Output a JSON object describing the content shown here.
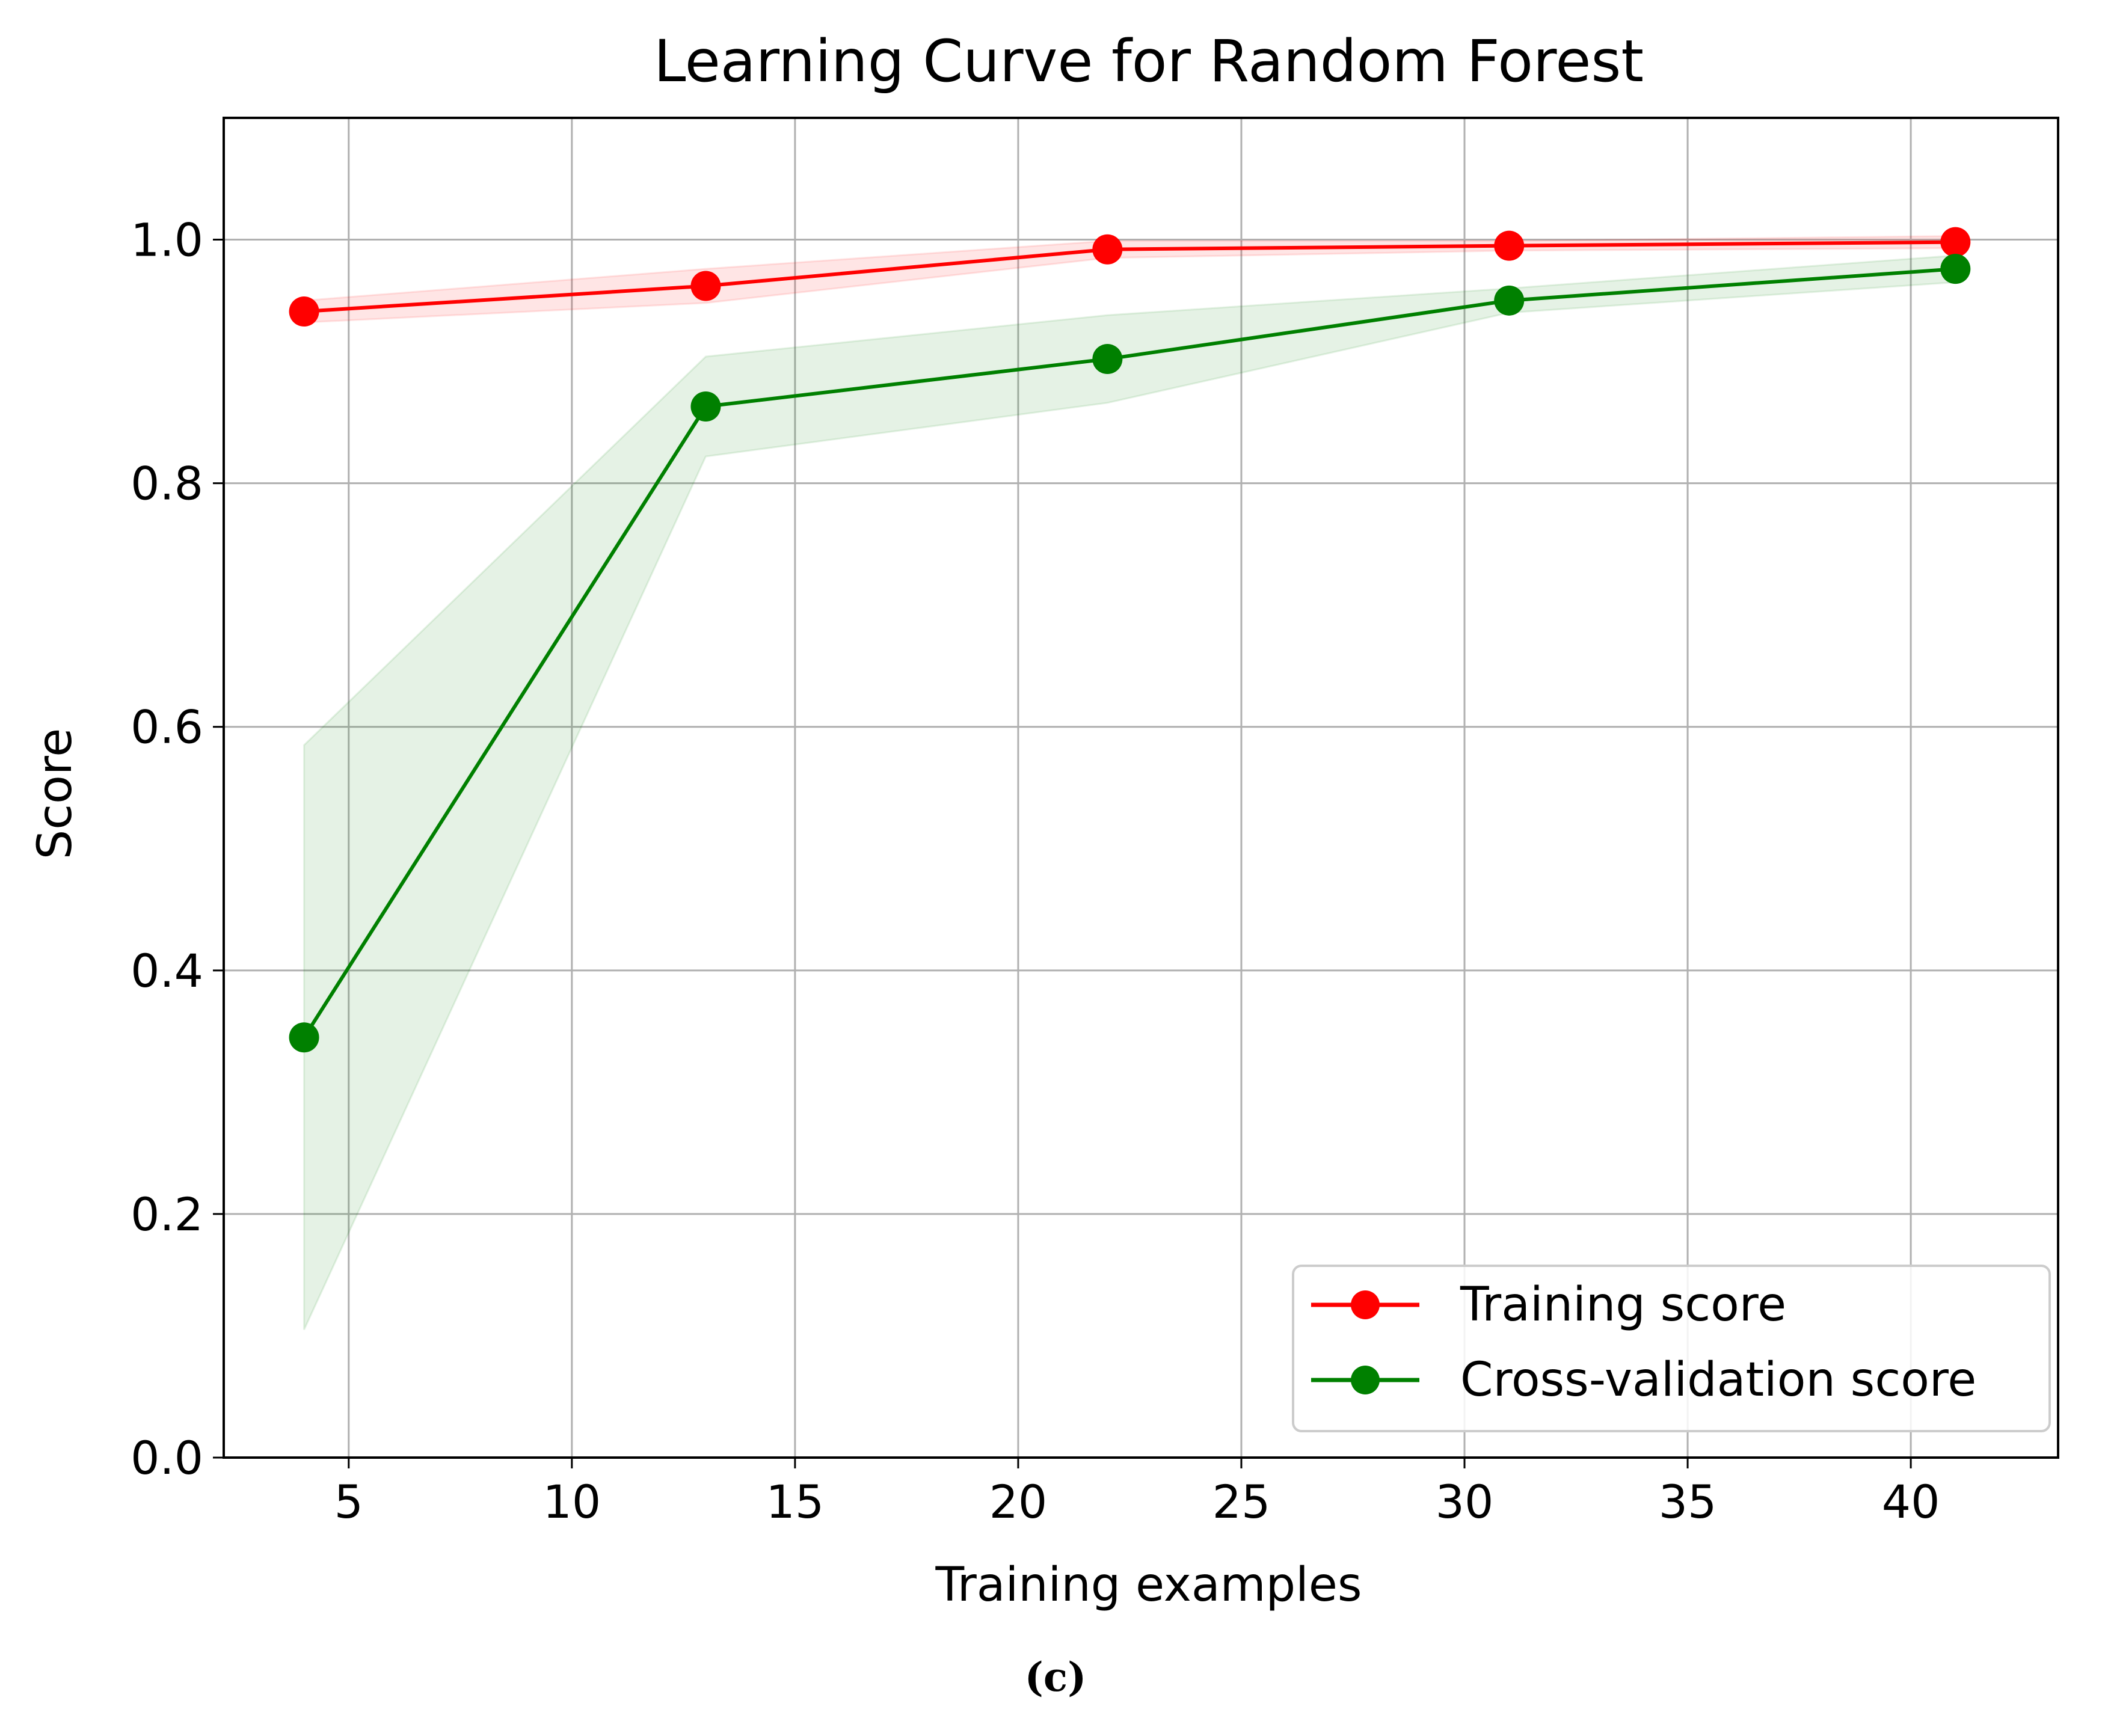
{
  "caption": "(c)",
  "chart_data": {
    "type": "line",
    "title": "Learning Curve for Random Forest",
    "xlabel": "Training examples",
    "ylabel": "Score",
    "xlim": [
      2.2,
      43.3
    ],
    "ylim": [
      0.0,
      1.1
    ],
    "xticks": [
      5,
      10,
      15,
      20,
      25,
      30,
      35,
      40
    ],
    "yticks": [
      0.0,
      0.2,
      0.4,
      0.6,
      0.8,
      1.0
    ],
    "ytick_labels": [
      "0.0",
      "0.2",
      "0.4",
      "0.6",
      "0.8",
      "1.0"
    ],
    "grid": true,
    "legend_position": "lower-right",
    "x": [
      4,
      13,
      22,
      31,
      41
    ],
    "series": [
      {
        "name": "Training score",
        "color": "#ff0000",
        "values": [
          0.941,
          0.962,
          0.992,
          0.995,
          0.998
        ],
        "band_lower": [
          0.932,
          0.948,
          0.985,
          0.991,
          0.993
        ],
        "band_upper": [
          0.95,
          0.976,
          0.999,
          0.999,
          1.003
        ]
      },
      {
        "name": "Cross-validation score",
        "color": "#008000",
        "values": [
          0.345,
          0.863,
          0.902,
          0.95,
          0.976
        ],
        "band_lower": [
          0.105,
          0.822,
          0.866,
          0.94,
          0.965
        ],
        "band_upper": [
          0.585,
          0.904,
          0.938,
          0.96,
          0.987
        ]
      }
    ]
  }
}
